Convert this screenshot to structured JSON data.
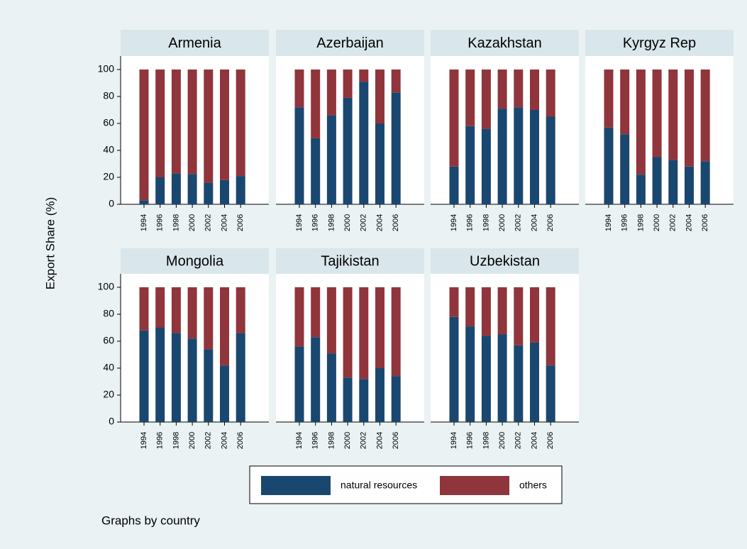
{
  "chart_data": [
    {
      "type": "bar",
      "stacked": true,
      "title": "Armenia",
      "categories": [
        "1994",
        "1996",
        "1998",
        "2000",
        "2002",
        "2004",
        "2006"
      ],
      "series": [
        {
          "name": "natural resources",
          "color": "#1a476f",
          "values": [
            3,
            20,
            23,
            22.5,
            16,
            18,
            21
          ]
        },
        {
          "name": "others",
          "color": "#90353b",
          "values": [
            97,
            80,
            77,
            77.5,
            84,
            82,
            79
          ]
        }
      ],
      "ylim": [
        0,
        110
      ],
      "yticks": [
        0,
        20,
        40,
        60,
        80,
        100
      ]
    },
    {
      "type": "bar",
      "stacked": true,
      "title": "Azerbaijan",
      "categories": [
        "1994",
        "1996",
        "1998",
        "2000",
        "2002",
        "2004",
        "2006"
      ],
      "series": [
        {
          "name": "natural resources",
          "color": "#1a476f",
          "values": [
            72,
            49,
            66,
            79,
            91,
            60,
            83
          ]
        },
        {
          "name": "others",
          "color": "#90353b",
          "values": [
            28,
            51,
            34,
            21,
            9,
            40,
            17
          ]
        }
      ],
      "ylim": [
        0,
        110
      ]
    },
    {
      "type": "bar",
      "stacked": true,
      "title": "Kazakhstan",
      "categories": [
        "1994",
        "1996",
        "1998",
        "2000",
        "2002",
        "2004",
        "2006"
      ],
      "series": [
        {
          "name": "natural resources",
          "color": "#1a476f",
          "values": [
            28,
            58,
            56,
            71,
            72,
            70,
            65
          ]
        },
        {
          "name": "others",
          "color": "#90353b",
          "values": [
            72,
            42,
            44,
            29,
            28,
            30,
            35
          ]
        }
      ],
      "ylim": [
        0,
        110
      ]
    },
    {
      "type": "bar",
      "stacked": true,
      "title": "Kyrgyz Rep",
      "categories": [
        "1994",
        "1996",
        "1998",
        "2000",
        "2002",
        "2004",
        "2006"
      ],
      "series": [
        {
          "name": "natural resources",
          "color": "#1a476f",
          "values": [
            57,
            52,
            22,
            35,
            33,
            28,
            32
          ]
        },
        {
          "name": "others",
          "color": "#90353b",
          "values": [
            43,
            48,
            78,
            65,
            67,
            72,
            68
          ]
        }
      ],
      "ylim": [
        0,
        110
      ]
    },
    {
      "type": "bar",
      "stacked": true,
      "title": "Mongolia",
      "categories": [
        "1994",
        "1996",
        "1998",
        "2000",
        "2002",
        "2004",
        "2006"
      ],
      "series": [
        {
          "name": "natural resources",
          "color": "#1a476f",
          "values": [
            68,
            70,
            66,
            62,
            54,
            42,
            66
          ]
        },
        {
          "name": "others",
          "color": "#90353b",
          "values": [
            32,
            30,
            34,
            38,
            46,
            58,
            34
          ]
        }
      ],
      "ylim": [
        0,
        110
      ],
      "yticks": [
        0,
        20,
        40,
        60,
        80,
        100
      ]
    },
    {
      "type": "bar",
      "stacked": true,
      "title": "Tajikistan",
      "categories": [
        "1994",
        "1996",
        "1998",
        "2000",
        "2002",
        "2004",
        "2006"
      ],
      "series": [
        {
          "name": "natural resources",
          "color": "#1a476f",
          "values": [
            56,
            63,
            51,
            33,
            32,
            40,
            34
          ]
        },
        {
          "name": "others",
          "color": "#90353b",
          "values": [
            44,
            37,
            49,
            67,
            68,
            60,
            66
          ]
        }
      ],
      "ylim": [
        0,
        110
      ]
    },
    {
      "type": "bar",
      "stacked": true,
      "title": "Uzbekistan",
      "categories": [
        "1994",
        "1996",
        "1998",
        "2000",
        "2002",
        "2004",
        "2006"
      ],
      "series": [
        {
          "name": "natural resources",
          "color": "#1a476f",
          "values": [
            78,
            71,
            64,
            65,
            57,
            59,
            42
          ]
        },
        {
          "name": "others",
          "color": "#90353b",
          "values": [
            22,
            29,
            36,
            35,
            43,
            41,
            58
          ]
        }
      ],
      "ylim": [
        0,
        110
      ]
    }
  ],
  "y_label": "Export Share (%)",
  "note": "Graphs by country"
}
